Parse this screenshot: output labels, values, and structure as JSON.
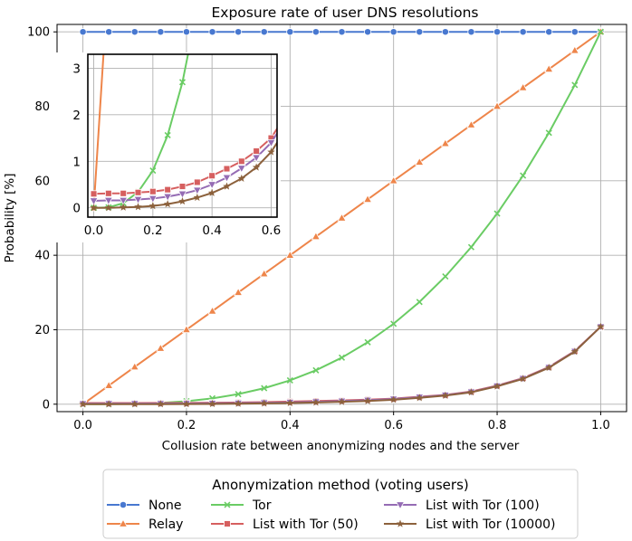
{
  "chart_data": {
    "type": "line",
    "title": "Exposure rate of user DNS resolutions",
    "xlabel": "Collusion rate between anonymizing nodes and the server",
    "ylabel": "Probability [%]",
    "xlim": [
      -0.05,
      1.05
    ],
    "ylim": [
      -2,
      102
    ],
    "xticks": [
      "0.0",
      "0.2",
      "0.4",
      "0.6",
      "0.8",
      "1.0"
    ],
    "yticks": [
      "0",
      "20",
      "40",
      "60",
      "80",
      "100"
    ],
    "grid": true,
    "x": [
      0,
      0.05,
      0.1,
      0.15,
      0.2,
      0.25,
      0.3,
      0.35,
      0.4,
      0.45,
      0.5,
      0.55,
      0.6,
      0.65,
      0.7,
      0.75,
      0.8,
      0.85,
      0.9,
      0.95,
      1.0
    ],
    "series": [
      {
        "name": "None",
        "color": "#4878d0",
        "marker": "circle",
        "values": [
          100,
          100,
          100,
          100,
          100,
          100,
          100,
          100,
          100,
          100,
          100,
          100,
          100,
          100,
          100,
          100,
          100,
          100,
          100,
          100,
          100
        ]
      },
      {
        "name": "Relay",
        "color": "#ee854a",
        "marker": "triangle-up",
        "values": [
          0,
          5,
          10,
          15,
          20,
          25,
          30,
          35,
          40,
          45,
          50,
          55,
          60,
          65,
          70,
          75,
          80,
          85,
          90,
          95,
          100
        ]
      },
      {
        "name": "Tor",
        "color": "#6acc64",
        "marker": "x",
        "values": [
          0,
          0.01,
          0.1,
          0.34,
          0.8,
          1.56,
          2.7,
          4.29,
          6.4,
          9.11,
          12.5,
          16.64,
          21.6,
          27.46,
          34.3,
          42.19,
          51.2,
          61.41,
          72.9,
          85.74,
          100
        ]
      },
      {
        "name": "List with Tor (50)",
        "color": "#d65f5f",
        "marker": "square",
        "values": [
          0.3,
          0.31,
          0.31,
          0.33,
          0.35,
          0.39,
          0.46,
          0.55,
          0.69,
          0.84,
          1.0,
          1.22,
          1.5,
          2.0,
          2.5,
          3.4,
          5.0,
          7.0,
          10.0,
          14.3,
          20.8
        ]
      },
      {
        "name": "List with Tor (100)",
        "color": "#956cb4",
        "marker": "triangle-down",
        "values": [
          0.15,
          0.16,
          0.16,
          0.18,
          0.2,
          0.24,
          0.3,
          0.38,
          0.5,
          0.65,
          0.85,
          1.08,
          1.4,
          1.9,
          2.45,
          3.3,
          4.9,
          6.9,
          9.9,
          14.2,
          20.8
        ]
      },
      {
        "name": "List with Tor (10000)",
        "color": "#8c613c",
        "marker": "star",
        "values": [
          0,
          0,
          0.01,
          0.02,
          0.04,
          0.08,
          0.14,
          0.22,
          0.32,
          0.46,
          0.63,
          0.87,
          1.2,
          1.7,
          2.3,
          3.2,
          4.8,
          6.8,
          9.8,
          14.1,
          20.8
        ]
      }
    ],
    "inset": {
      "xlim": [
        -0.02,
        0.62
      ],
      "ylim": [
        -0.2,
        3.3
      ],
      "xticks": [
        "0.0",
        "0.2",
        "0.4",
        "0.6"
      ],
      "yticks": [
        "0",
        "1",
        "2",
        "3"
      ]
    },
    "legend": {
      "title": "Anonymization method (voting users)",
      "placement": "below-plot",
      "columns": 3
    }
  }
}
